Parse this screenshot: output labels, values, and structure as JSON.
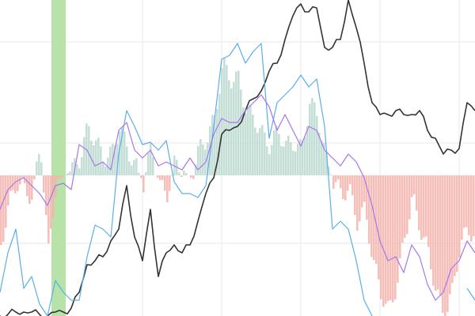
{
  "chart_data": {
    "type": "line",
    "title": "",
    "xlabel": "",
    "ylabel": "",
    "xlim": [
      0,
      60
    ],
    "ylim": [
      -17.8,
      22.2
    ],
    "grid": true,
    "legend": "none",
    "highlight_band": {
      "x": [
        6.5,
        8.3
      ],
      "color": "#b7e2a8"
    },
    "x": [
      0,
      1,
      2,
      3,
      4,
      5,
      6,
      7,
      8,
      9,
      10,
      11,
      12,
      13,
      14,
      15,
      16,
      17,
      18,
      19,
      20,
      21,
      22,
      23,
      24,
      25,
      26,
      27,
      28,
      29,
      30,
      31,
      32,
      33,
      34,
      35,
      36,
      37,
      38,
      39,
      40,
      41,
      42,
      43,
      44,
      45,
      46,
      47,
      48,
      49,
      50,
      51,
      52,
      53,
      54,
      55,
      56,
      57,
      58,
      59,
      60
    ],
    "histogram": {
      "positive_color": "#bcd9cf",
      "negative_color": "#f5b3ad",
      "values": [
        -8.8,
        -3.8,
        -0.8,
        -1.8,
        -2.8,
        4.2,
        -9.8,
        -0.8,
        0,
        0.7,
        2.2,
        6.2,
        4.2,
        2.2,
        2.7,
        6.2,
        3.2,
        1.2,
        -1.0,
        3.7,
        -1.3,
        -2.3,
        1.7,
        0.7,
        -0.3,
        3.2,
        4.7,
        7.2,
        14.2,
        12.2,
        12.2,
        8.2,
        7.2,
        5.2,
        3.7,
        5.7,
        3.7,
        4.2,
        3.2,
        9.2,
        7.7,
        2.2,
        -0.8,
        -2.3,
        -1.8,
        -5.8,
        -4.3,
        -10.8,
        -14.8,
        -17.3,
        -13.8,
        -7.8,
        -2.8,
        -6.8,
        -9.8,
        -14.8,
        -17.8,
        -14.8,
        -8.8,
        -6.8,
        -7.8
      ]
    },
    "series": [
      {
        "color": "#333333",
        "values": [
          -17.8,
          -17.6,
          -17.3,
          -17.3,
          -17.3,
          -17.6,
          -17.8,
          -17.3,
          -17.3,
          -16.8,
          -14.8,
          -11.3,
          -10.8,
          -10.3,
          -8.3,
          -6.8,
          -1.3,
          -7.8,
          -10.8,
          -4.3,
          -12.8,
          -9.8,
          -8.8,
          -9.8,
          -8.8,
          -5.8,
          -2.3,
          -0.3,
          5.2,
          5.7,
          6.2,
          8.2,
          9.7,
          10.7,
          13.2,
          14.2,
          17.2,
          20.2,
          21.7,
          20.7,
          21.2,
          16.2,
          16.2,
          17.2,
          22.2,
          18.7,
          14.2,
          9.2,
          7.7,
          7.7,
          8.2,
          7.7,
          7.7,
          8.2,
          5.7,
          4.7,
          2.7,
          3.2,
          3.4,
          9.2,
          8.2
        ]
      },
      {
        "color": "#5aaeea",
        "values": [
          -14.8,
          -9.8,
          -6.8,
          -14.3,
          -12.8,
          -16.3,
          -17.8,
          -13.3,
          -14.8,
          -15.8,
          -15.8,
          -10.3,
          -6.3,
          -6.8,
          -7.8,
          2.7,
          8.2,
          6.2,
          3.9,
          4.2,
          3.2,
          4.4,
          -0.8,
          -2.3,
          -2.3,
          -2.8,
          -1.3,
          6.2,
          14.7,
          15.2,
          16.7,
          14.2,
          15.7,
          16.7,
          4.7,
          9.2,
          10.2,
          11.2,
          12.7,
          11.2,
          12.2,
          6.2,
          -6.8,
          -5.8,
          -6.8,
          -10.8,
          -15.8,
          -17.8,
          null,
          null,
          null,
          null,
          null,
          null,
          null,
          null,
          null,
          null,
          null,
          -14.3,
          -15.8
        ]
      },
      {
        "color": "#a577ee",
        "values": [
          -4.3,
          -1.8,
          -0.8,
          -0.3,
          -1.3,
          -2.3,
          -3.8,
          -1.3,
          -1.0,
          -1.8,
          3.9,
          3.2,
          1.2,
          1.7,
          0.7,
          5.7,
          6.7,
          3.2,
          2.2,
          3.2,
          1.2,
          1.7,
          1.2,
          0.7,
          2.2,
          0.7,
          1.7,
          5.2,
          7.2,
          6.7,
          6.7,
          8.2,
          9.2,
          10.2,
          8.7,
          5.7,
          7.7,
          5.7,
          3.7,
          6.2,
          5.7,
          3.2,
          2.2,
          1.2,
          2.7,
          1.7,
          -0.3,
          -3.8,
          -8.3,
          -10.8,
          -10.3,
          -12.3,
          -8.8,
          -10.3,
          -13.8,
          -15.8,
          -14.8,
          -11.8,
          -10.8,
          -8.3,
          -9.8
        ]
      }
    ]
  }
}
